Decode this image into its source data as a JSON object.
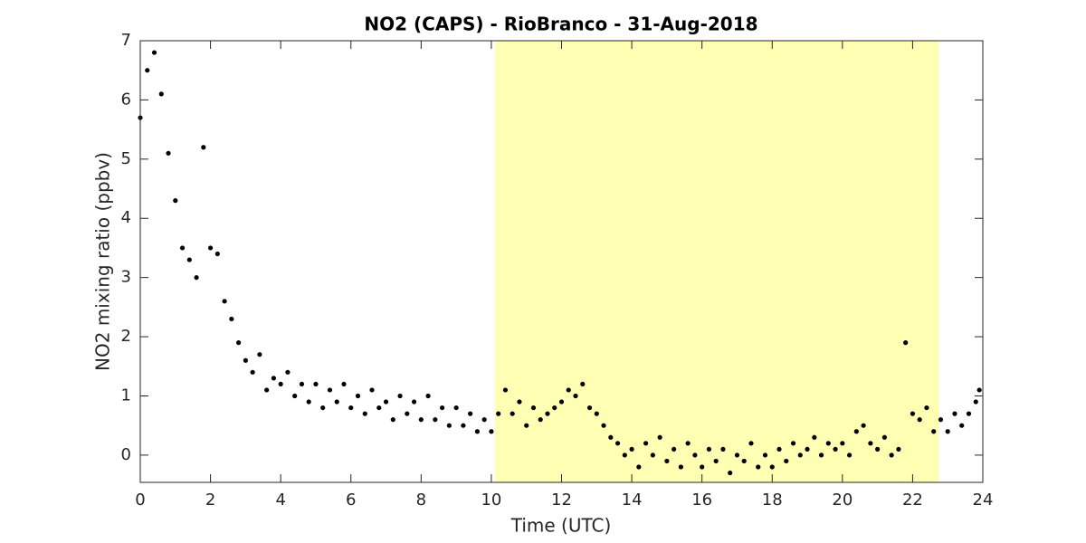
{
  "chart_data": {
    "type": "scatter",
    "title": "NO2 (CAPS) - RioBranco - 31-Aug-2018",
    "xlabel": "Time (UTC)",
    "ylabel": "NO2 mixing ratio (ppbv)",
    "xlim": [
      0,
      24
    ],
    "ylim": [
      -0.46,
      7
    ],
    "xticks": [
      0,
      2,
      4,
      6,
      8,
      10,
      12,
      14,
      16,
      18,
      20,
      22,
      24
    ],
    "yticks": [
      0,
      1,
      2,
      3,
      4,
      5,
      6,
      7
    ],
    "highlight": {
      "xlim": [
        10.1,
        22.75
      ],
      "color": "#ffffb3"
    },
    "series": [
      {
        "color": "#000000",
        "x": [
          0.0,
          0.2,
          0.4,
          0.6,
          0.8,
          1.0,
          1.2,
          1.4,
          1.6,
          1.8,
          2.0,
          2.2,
          2.4,
          2.6,
          2.8,
          3.0,
          3.2,
          3.4,
          3.6,
          3.8,
          4.0,
          4.2,
          4.4,
          4.6,
          4.8,
          5.0,
          5.2,
          5.4,
          5.6,
          5.8,
          6.0,
          6.2,
          6.4,
          6.6,
          6.8,
          7.0,
          7.2,
          7.4,
          7.6,
          7.8,
          8.0,
          8.2,
          8.4,
          8.6,
          8.8,
          9.0,
          9.2,
          9.4,
          9.6,
          9.8,
          10.0,
          10.2,
          10.4,
          10.6,
          10.8,
          11.0,
          11.2,
          11.4,
          11.6,
          11.8,
          12.0,
          12.2,
          12.4,
          12.6,
          12.8,
          13.0,
          13.2,
          13.4,
          13.6,
          13.8,
          14.0,
          14.2,
          14.4,
          14.6,
          14.8,
          15.0,
          15.2,
          15.4,
          15.6,
          15.8,
          16.0,
          16.2,
          16.4,
          16.6,
          16.8,
          17.0,
          17.2,
          17.4,
          17.6,
          17.8,
          18.0,
          18.2,
          18.4,
          18.6,
          18.8,
          19.0,
          19.2,
          19.4,
          19.6,
          19.8,
          20.0,
          20.2,
          20.4,
          20.6,
          20.8,
          21.0,
          21.2,
          21.4,
          21.6,
          21.8,
          22.0,
          22.2,
          22.4,
          22.6,
          22.8,
          23.0,
          23.2,
          23.4,
          23.6,
          23.8,
          23.9
        ],
        "values": [
          5.7,
          6.5,
          6.8,
          6.1,
          5.1,
          4.3,
          3.5,
          3.3,
          3.0,
          5.2,
          3.5,
          3.4,
          2.6,
          2.3,
          1.9,
          1.6,
          1.4,
          1.7,
          1.1,
          1.3,
          1.2,
          1.4,
          1.0,
          1.2,
          0.9,
          1.2,
          0.8,
          1.1,
          0.9,
          1.2,
          0.8,
          1.0,
          0.7,
          1.1,
          0.8,
          0.9,
          0.6,
          1.0,
          0.7,
          0.9,
          0.6,
          1.0,
          0.6,
          0.8,
          0.5,
          0.8,
          0.5,
          0.7,
          0.4,
          0.6,
          0.4,
          0.7,
          1.1,
          0.7,
          0.9,
          0.5,
          0.8,
          0.6,
          0.7,
          0.8,
          0.9,
          1.1,
          1.0,
          1.2,
          0.8,
          0.7,
          0.5,
          0.3,
          0.2,
          0.0,
          0.1,
          -0.2,
          0.2,
          0.0,
          0.3,
          -0.1,
          0.1,
          -0.2,
          0.2,
          0.0,
          -0.2,
          0.1,
          -0.1,
          0.1,
          -0.3,
          0.0,
          -0.1,
          0.2,
          -0.2,
          0.0,
          -0.2,
          0.1,
          -0.1,
          0.2,
          0.0,
          0.1,
          0.3,
          0.0,
          0.2,
          0.1,
          0.2,
          0.0,
          0.4,
          0.5,
          0.2,
          0.1,
          0.3,
          0.0,
          0.1,
          1.9,
          0.7,
          0.6,
          0.8,
          0.4,
          0.6,
          0.4,
          0.7,
          0.5,
          0.7,
          0.9,
          1.1
        ]
      }
    ]
  }
}
